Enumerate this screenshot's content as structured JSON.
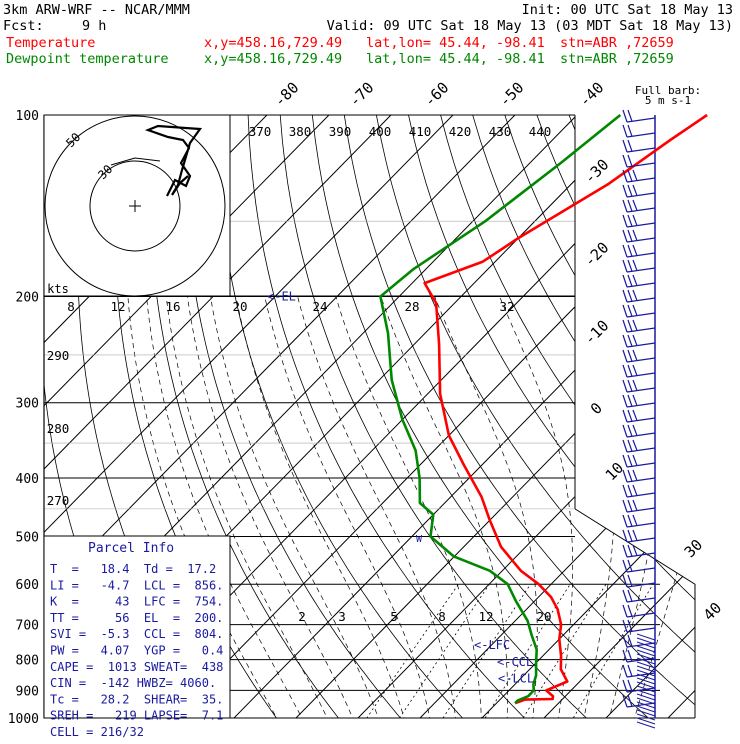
{
  "header": {
    "model": "3km ARW-WRF -- NCAR/MMM",
    "init": "Init: 00 UTC Sat 18 May 13",
    "fcst_label": "Fcst:",
    "fcst_value": "9 h",
    "valid": "Valid: 09 UTC Sat 18 May 13 (03 MDT Sat 18 May 13)",
    "temp_name": "Temperature",
    "dew_name": "Dewpoint temperature",
    "xy": "x,y=458.16,729.49",
    "latlon": "lat,lon= 45.44, -98.41",
    "stn": "stn=ABR ,72659",
    "colors": {
      "temperature": "#ff0000",
      "dewpoint": "#008800",
      "wind": "#1a1aa0"
    }
  },
  "chart_data": {
    "type": "line",
    "pressure_levels": [
      100,
      200,
      300,
      400,
      500,
      600,
      700,
      800,
      900,
      1000
    ],
    "isotherm_labels": [
      "-80",
      "-70",
      "-60",
      "-50",
      "-40",
      "-30",
      "-20",
      "-10",
      "0",
      "10",
      "30",
      "40"
    ],
    "theta_labels": [
      "370",
      "380",
      "390",
      "400",
      "410",
      "420",
      "430",
      "440"
    ],
    "theta_left_labels": [
      "290",
      "280",
      "270"
    ],
    "mixing_ratio_labels": [
      "2",
      "3",
      "5",
      "8",
      "12",
      "20"
    ],
    "hodograph": {
      "unit": "kts",
      "ring_labels": [
        "50",
        "30"
      ],
      "speed_labels": [
        "8",
        "12",
        "16",
        "20",
        "24",
        "28",
        "32"
      ]
    },
    "level_markers": [
      "<-EL",
      "<-LFC",
      "<-CCL",
      "<-LCL"
    ],
    "wind_legend": [
      "Full barb:",
      "5 m s-1"
    ],
    "series": [
      {
        "name": "Temperature",
        "color": "#ff0000",
        "points": [
          [
            -49,
            100
          ],
          [
            -51,
            110
          ],
          [
            -54,
            130
          ],
          [
            -60,
            160
          ],
          [
            -62,
            175
          ],
          [
            -68,
            190
          ],
          [
            -63,
            205
          ],
          [
            -56,
            240
          ],
          [
            -48,
            290
          ],
          [
            -40,
            340
          ],
          [
            -33,
            380
          ],
          [
            -25,
            430
          ],
          [
            -20,
            470
          ],
          [
            -14,
            520
          ],
          [
            -7,
            570
          ],
          [
            -2,
            600
          ],
          [
            2,
            630
          ],
          [
            5,
            660
          ],
          [
            8,
            700
          ],
          [
            10,
            740
          ],
          [
            13,
            790
          ],
          [
            15,
            830
          ],
          [
            18,
            870
          ],
          [
            16,
            900
          ],
          [
            18,
            920
          ],
          [
            18.4,
            930
          ],
          [
            14,
            932
          ],
          [
            13,
            945
          ]
        ]
      },
      {
        "name": "Dewpoint temperature",
        "color": "#008800",
        "points": [
          [
            -63,
            100
          ],
          [
            -65,
            120
          ],
          [
            -68,
            150
          ],
          [
            -72,
            180
          ],
          [
            -73,
            200
          ],
          [
            -66,
            230
          ],
          [
            -58,
            275
          ],
          [
            -50,
            320
          ],
          [
            -43,
            360
          ],
          [
            -38,
            400
          ],
          [
            -34,
            440
          ],
          [
            -30,
            460
          ],
          [
            -27,
            500
          ],
          [
            -20,
            540
          ],
          [
            -12,
            570
          ],
          [
            -7,
            600
          ],
          [
            -3,
            640
          ],
          [
            2,
            690
          ],
          [
            5,
            730
          ],
          [
            8,
            770
          ],
          [
            10,
            810
          ],
          [
            12,
            850
          ],
          [
            13,
            880
          ],
          [
            14,
            900
          ],
          [
            14,
            920
          ],
          [
            13,
            935
          ],
          [
            13,
            945
          ]
        ]
      }
    ]
  },
  "parcel": {
    "title": "Parcel Info",
    "rows": [
      "T  =   18.4  Td =  17.2",
      "LI =   -4.7  LCL =  856.",
      "K  =     43  LFC =  754.",
      "TT =     56  EL  =  200.",
      "SVI =  -5.3  CCL =  804.",
      "PW =   4.07  YGP =   0.4",
      "CAPE =  1013 SWEAT=  438",
      "CIN =  -142 HWBZ= 4060.",
      "Tc =   28.2  SHEAR=  35.",
      "SREH =   219 LAPSE=  7.1",
      "CELL = 216/32"
    ]
  }
}
